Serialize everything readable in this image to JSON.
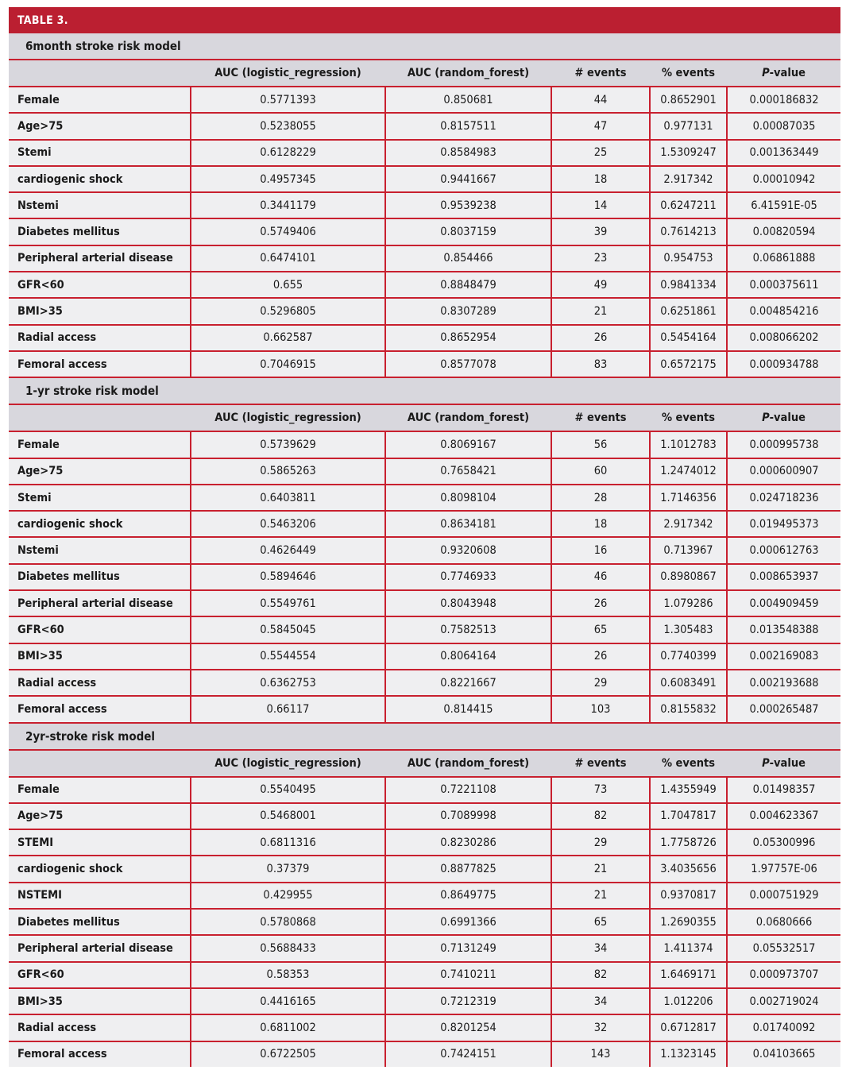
{
  "title": "TABLE 3.",
  "colors": {
    "accent": "#bb1f31",
    "header_bg": "#d8d7dd",
    "row_bg": "#efeff1"
  },
  "columns": [
    "",
    "AUC (logistic_regression)",
    "AUC (random_forest)",
    "# events",
    "% events",
    "P-value"
  ],
  "sections": [
    {
      "title": "6month stroke risk model",
      "rows": [
        [
          "Female",
          "0.5771393",
          "0.850681",
          "44",
          "0.8652901",
          "0.000186832"
        ],
        [
          "Age>75",
          "0.5238055",
          "0.8157511",
          "47",
          "0.977131",
          "0.00087035"
        ],
        [
          "Stemi",
          "0.6128229",
          "0.8584983",
          "25",
          "1.5309247",
          "0.001363449"
        ],
        [
          "cardiogenic shock",
          "0.4957345",
          "0.9441667",
          "18",
          "2.917342",
          "0.00010942"
        ],
        [
          "Nstemi",
          "0.3441179",
          "0.9539238",
          "14",
          "0.6247211",
          "6.41591E-05"
        ],
        [
          "Diabetes mellitus",
          "0.5749406",
          "0.8037159",
          "39",
          "0.7614213",
          "0.00820594"
        ],
        [
          "Peripheral arterial disease",
          "0.6474101",
          "0.854466",
          "23",
          "0.954753",
          "0.06861888"
        ],
        [
          "GFR<60",
          "0.655",
          "0.8848479",
          "49",
          "0.9841334",
          "0.000375611"
        ],
        [
          "BMI>35",
          "0.5296805",
          "0.8307289",
          "21",
          "0.6251861",
          "0.004854216"
        ],
        [
          "Radial access",
          "0.662587",
          "0.8652954",
          "26",
          "0.5454164",
          "0.008066202"
        ],
        [
          "Femoral access",
          "0.7046915",
          "0.8577078",
          "83",
          "0.6572175",
          "0.000934788"
        ]
      ]
    },
    {
      "title": "1-yr stroke risk model",
      "rows": [
        [
          "Female",
          "0.5739629",
          "0.8069167",
          "56",
          "1.1012783",
          "0.000995738"
        ],
        [
          "Age>75",
          "0.5865263",
          "0.7658421",
          "60",
          "1.2474012",
          "0.000600907"
        ],
        [
          "Stemi",
          "0.6403811",
          "0.8098104",
          "28",
          "1.7146356",
          "0.024718236"
        ],
        [
          "cardiogenic shock",
          "0.5463206",
          "0.8634181",
          "18",
          "2.917342",
          "0.019495373"
        ],
        [
          "Nstemi",
          "0.4626449",
          "0.9320608",
          "16",
          "0.713967",
          "0.000612763"
        ],
        [
          "Diabetes mellitus",
          "0.5894646",
          "0.7746933",
          "46",
          "0.8980867",
          "0.008653937"
        ],
        [
          "Peripheral arterial disease",
          "0.5549761",
          "0.8043948",
          "26",
          "1.079286",
          "0.004909459"
        ],
        [
          "GFR<60",
          "0.5845045",
          "0.7582513",
          "65",
          "1.305483",
          "0.013548388"
        ],
        [
          "BMI>35",
          "0.5544554",
          "0.8064164",
          "26",
          "0.7740399",
          "0.002169083"
        ],
        [
          "Radial access",
          "0.6362753",
          "0.8221667",
          "29",
          "0.6083491",
          "0.002193688"
        ],
        [
          "Femoral access",
          "0.66117",
          "0.814415",
          "103",
          "0.8155832",
          "0.000265487"
        ]
      ]
    },
    {
      "title": "2yr-stroke risk model",
      "rows": [
        [
          "Female",
          "0.5540495",
          "0.7221108",
          "73",
          "1.4355949",
          "0.01498357"
        ],
        [
          "Age>75",
          "0.5468001",
          "0.7089998",
          "82",
          "1.7047817",
          "0.004623367"
        ],
        [
          "STEMI",
          "0.6811316",
          "0.8230286",
          "29",
          "1.7758726",
          "0.05300996"
        ],
        [
          "cardiogenic shock",
          "0.37379",
          "0.8877825",
          "21",
          "3.4035656",
          "1.97757E-06"
        ],
        [
          "NSTEMI",
          "0.429955",
          "0.8649775",
          "21",
          "0.9370817",
          "0.000751929"
        ],
        [
          "Diabetes mellitus",
          "0.5780868",
          "0.6991366",
          "65",
          "1.2690355",
          "0.0680666"
        ],
        [
          "Peripheral arterial disease",
          "0.5688433",
          "0.7131249",
          "34",
          "1.411374",
          "0.05532517"
        ],
        [
          "GFR<60",
          "0.58353",
          "0.7410211",
          "82",
          "1.6469171",
          "0.000973707"
        ],
        [
          "BMI>35",
          "0.4416165",
          "0.7212319",
          "34",
          "1.012206",
          "0.002719024"
        ],
        [
          "Radial access",
          "0.6811002",
          "0.8201254",
          "32",
          "0.6712817",
          "0.01740092"
        ],
        [
          "Femoral access",
          "0.6722505",
          "0.7424151",
          "143",
          "1.1323145",
          "0.04103665"
        ]
      ]
    }
  ]
}
